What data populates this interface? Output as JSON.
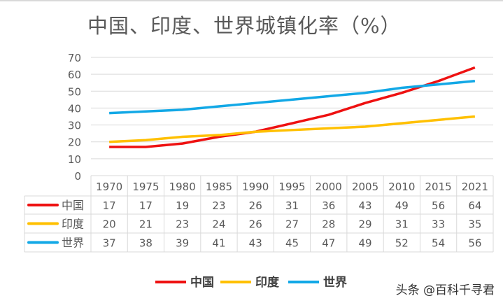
{
  "chart_data": {
    "type": "line",
    "title": "中国、印度、世界城镇化率（%）",
    "categories": [
      "1970",
      "1975",
      "1980",
      "1985",
      "1990",
      "1995",
      "2000",
      "2005",
      "2010",
      "2015",
      "2021"
    ],
    "series": [
      {
        "name": "中国",
        "color": "#ee1111",
        "values": [
          17,
          17,
          19,
          23,
          26,
          31,
          36,
          43,
          49,
          56,
          64
        ]
      },
      {
        "name": "印度",
        "color": "#ffc000",
        "values": [
          20,
          21,
          23,
          24,
          26,
          27,
          28,
          29,
          31,
          33,
          35
        ]
      },
      {
        "name": "世界",
        "color": "#12a8e6",
        "values": [
          37,
          38,
          39,
          41,
          43,
          45,
          47,
          49,
          52,
          54,
          56
        ]
      }
    ],
    "ylim": [
      0,
      70
    ],
    "yticks": [
      "0",
      "10",
      "20",
      "30",
      "40",
      "50",
      "60",
      "70"
    ],
    "grid": true,
    "data_table": true,
    "legend": "bottom"
  },
  "watermark": "头条 @百科千寻君"
}
